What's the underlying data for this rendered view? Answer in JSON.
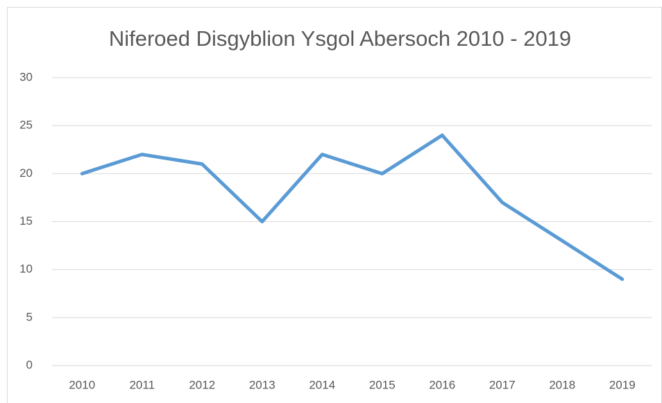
{
  "chart_data": {
    "type": "line",
    "title": "Niferoed Disgyblion Ysgol Abersoch 2010 - 2019",
    "categories": [
      "2010",
      "2011",
      "2012",
      "2013",
      "2014",
      "2015",
      "2016",
      "2017",
      "2018",
      "2019"
    ],
    "series": [
      {
        "color": "#5b9bd5",
        "values": [
          20,
          22,
          21,
          15,
          22,
          20,
          24,
          17,
          13,
          9
        ]
      }
    ],
    "ylim": [
      0,
      30
    ],
    "yticks": [
      0,
      5,
      10,
      15,
      20,
      25,
      30
    ],
    "grid": true
  }
}
